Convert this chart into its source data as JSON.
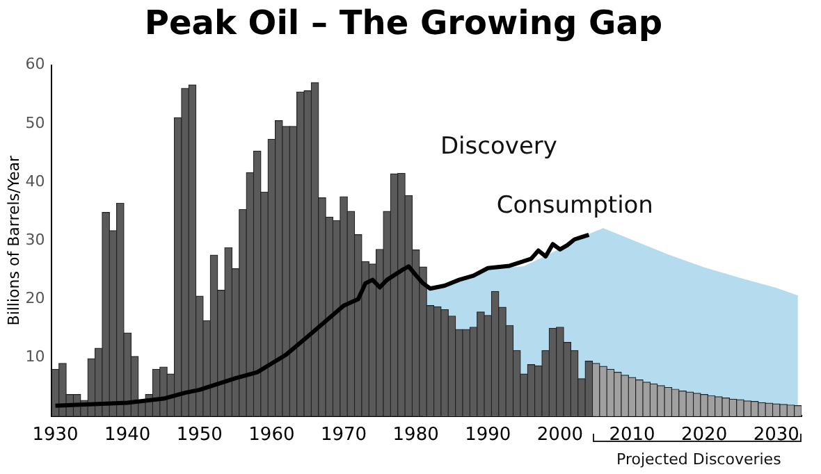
{
  "chart_data": {
    "type": "bar",
    "title": "Peak Oil – The Growing Gap",
    "ylabel": "Billions of Barrels/Year",
    "xlim": [
      1929.5,
      2033.5
    ],
    "xticks": [
      1930,
      1940,
      1950,
      1960,
      1970,
      1980,
      1990,
      2000,
      2010,
      2020,
      2030
    ],
    "ylim": [
      0,
      60
    ],
    "yticks": [
      10,
      20,
      30,
      40,
      50,
      60
    ],
    "grid": false,
    "legend": false,
    "annotations": [
      "Projected Discoveries"
    ],
    "series": [
      {
        "name": "Discovery",
        "x": [
          1930,
          1931,
          1932,
          1933,
          1934,
          1935,
          1936,
          1937,
          1938,
          1939,
          1940,
          1941,
          1942,
          1943,
          1944,
          1945,
          1946,
          1947,
          1948,
          1949,
          1950,
          1951,
          1952,
          1953,
          1954,
          1955,
          1956,
          1957,
          1958,
          1959,
          1960,
          1961,
          1962,
          1963,
          1964,
          1965,
          1966,
          1967,
          1968,
          1969,
          1970,
          1971,
          1972,
          1973,
          1974,
          1975,
          1976,
          1977,
          1978,
          1979,
          1980,
          1981,
          1982,
          1983,
          1984,
          1985,
          1986,
          1987,
          1988,
          1989,
          1990,
          1991,
          1992,
          1993,
          1994,
          1995,
          1996,
          1997,
          1998,
          1999,
          2000,
          2001,
          2002,
          2003,
          2004,
          2005,
          2006,
          2007,
          2008,
          2009,
          2010,
          2011,
          2012,
          2013,
          2014,
          2015,
          2016,
          2017,
          2018,
          2019,
          2020,
          2021,
          2022,
          2023,
          2024,
          2025,
          2026,
          2027,
          2028,
          2029,
          2030,
          2031,
          2032,
          2033
        ],
        "values": [
          8,
          9,
          3.7,
          3.7,
          2.7,
          9.8,
          11.6,
          34.8,
          31.7,
          36.4,
          14.2,
          10.2,
          2.7,
          3.7,
          8,
          8.4,
          7.2,
          51,
          56,
          56.6,
          20.5,
          16.3,
          27.5,
          21.5,
          28.8,
          25.2,
          35.3,
          41.6,
          45.3,
          38.3,
          47.3,
          50.5,
          49.5,
          49.5,
          55.4,
          55.6,
          57,
          37.3,
          34,
          33.4,
          37.5,
          35,
          31,
          26.4,
          26,
          28.5,
          35,
          41.4,
          41.5,
          37.7,
          28.4,
          25.5,
          18.9,
          18.7,
          18.2,
          17.1,
          14.8,
          14.8,
          15.2,
          17.8,
          17.2,
          21.3,
          18.6,
          15.5,
          11.2,
          7.2,
          8.8,
          8.6,
          11.2,
          15,
          15.2,
          12.6,
          11.2,
          6.4,
          9.4,
          9,
          8.5,
          8,
          7.5,
          7,
          6.6,
          6.2,
          5.8,
          5.5,
          5.2,
          4.9,
          4.6,
          4.3,
          4.1,
          3.9,
          3.7,
          3.5,
          3.3,
          3.1,
          2.9,
          2.8,
          2.6,
          2.5,
          2.3,
          2.2,
          2.1,
          2,
          1.9,
          1.8
        ],
        "colors": [
          "#5a5a5a",
          "#5a5a5a",
          "#5a5a5a",
          "#5a5a5a",
          "#5a5a5a",
          "#5a5a5a",
          "#5a5a5a",
          "#5a5a5a",
          "#5a5a5a",
          "#5a5a5a",
          "#5a5a5a",
          "#5a5a5a",
          "#5a5a5a",
          "#5a5a5a",
          "#5a5a5a",
          "#5a5a5a",
          "#5a5a5a",
          "#5a5a5a",
          "#5a5a5a",
          "#5a5a5a",
          "#5a5a5a",
          "#5a5a5a",
          "#5a5a5a",
          "#5a5a5a",
          "#5a5a5a",
          "#5a5a5a",
          "#5a5a5a",
          "#5a5a5a",
          "#5a5a5a",
          "#5a5a5a",
          "#5a5a5a",
          "#5a5a5a",
          "#5a5a5a",
          "#5a5a5a",
          "#5a5a5a",
          "#5a5a5a",
          "#5a5a5a",
          "#5a5a5a",
          "#5a5a5a",
          "#5a5a5a",
          "#5a5a5a",
          "#5a5a5a",
          "#5a5a5a",
          "#5a5a5a",
          "#5a5a5a",
          "#5a5a5a",
          "#5a5a5a",
          "#5a5a5a",
          "#5a5a5a",
          "#5a5a5a",
          "#5a5a5a",
          "#5a5a5a",
          "#5a5a5a",
          "#5a5a5a",
          "#5a5a5a",
          "#5a5a5a",
          "#5a5a5a",
          "#5a5a5a",
          "#5a5a5a",
          "#5a5a5a",
          "#5a5a5a",
          "#5a5a5a",
          "#5a5a5a",
          "#5a5a5a",
          "#5a5a5a",
          "#5a5a5a",
          "#5a5a5a",
          "#5a5a5a",
          "#5a5a5a",
          "#5a5a5a",
          "#5a5a5a",
          "#5a5a5a",
          "#5a5a5a",
          "#5a5a5a",
          "#5a5a5a",
          "#a0a0a0",
          "#a0a0a0",
          "#a0a0a0",
          "#a0a0a0",
          "#a0a0a0",
          "#a0a0a0",
          "#a0a0a0",
          "#a0a0a0",
          "#a0a0a0",
          "#a0a0a0",
          "#a0a0a0",
          "#a0a0a0",
          "#a0a0a0",
          "#a0a0a0",
          "#a0a0a0",
          "#a0a0a0",
          "#a0a0a0",
          "#a0a0a0",
          "#a0a0a0",
          "#a0a0a0",
          "#a0a0a0",
          "#a0a0a0",
          "#a0a0a0",
          "#a0a0a0",
          "#a0a0a0",
          "#a0a0a0",
          "#a0a0a0",
          "#a0a0a0",
          "#a0a0a0"
        ]
      },
      {
        "type": "area",
        "color": "#b4dcee",
        "x": [
          1981,
          1985,
          1990,
          1995,
          2000,
          2004,
          2006,
          2010,
          2015,
          2020,
          2025,
          2030,
          2033
        ],
        "values": [
          22,
          22.5,
          25,
          25.5,
          28.5,
          31,
          32,
          30,
          27.5,
          25.3,
          23.5,
          21.8,
          20.5
        ]
      },
      {
        "name": "Consumption",
        "type": "line",
        "color": "#000000",
        "x": [
          1930,
          1940,
          1945,
          1948,
          1950,
          1955,
          1958,
          1960,
          1962,
          1965,
          1970,
          1972,
          1973,
          1974,
          1975,
          1976,
          1978,
          1979,
          1980,
          1981,
          1982,
          1984,
          1986,
          1988,
          1990,
          1993,
          1996,
          1997,
          1998,
          1999,
          2000,
          2001,
          2002,
          2003,
          2004
        ],
        "values": [
          1.8,
          2.3,
          3,
          4,
          4.5,
          6.5,
          7.5,
          9,
          10.5,
          13.6,
          18.9,
          20,
          22.7,
          23.3,
          22,
          23.3,
          24.9,
          25.6,
          24.1,
          22.7,
          21.8,
          22.3,
          23.3,
          24,
          25.3,
          25.7,
          26.9,
          28.3,
          27.3,
          29.4,
          28.5,
          29.2,
          30.2,
          30.6,
          31
        ]
      }
    ]
  }
}
